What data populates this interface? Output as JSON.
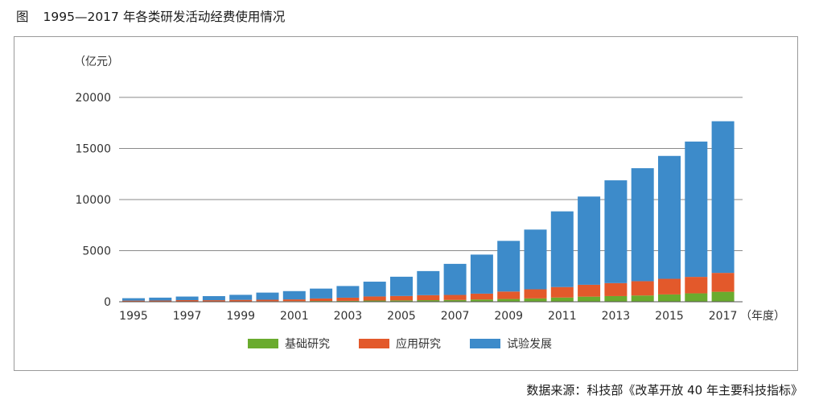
{
  "figure": {
    "label": "图",
    "title": "1995—2017 年各类研发活动经费使用情况"
  },
  "source": "数据来源：科技部《改革开放 40 年主要科技指标》",
  "chart_data": {
    "type": "bar",
    "stacked": true,
    "y_unit_label": "（亿元）",
    "x_unit_label": "（年度）",
    "ylim": [
      0,
      20000
    ],
    "y_ticks": [
      0,
      5000,
      10000,
      15000,
      20000
    ],
    "grid": "horizontal",
    "legend_position": "bottom-center",
    "categories": [
      "1995",
      "1996",
      "1997",
      "1998",
      "1999",
      "2000",
      "2001",
      "2002",
      "2003",
      "2004",
      "2005",
      "2006",
      "2007",
      "2008",
      "2009",
      "2010",
      "2011",
      "2012",
      "2013",
      "2014",
      "2015",
      "2016",
      "2017"
    ],
    "x_tick_labels": [
      "1995",
      "1997",
      "1999",
      "2001",
      "2003",
      "2005",
      "2007",
      "2009",
      "2011",
      "2013",
      "2015",
      "2017"
    ],
    "series": [
      {
        "name": "基础研究",
        "color": "#6aab2e",
        "values": [
          18,
          20,
          27,
          28,
          34,
          46,
          55,
          74,
          87,
          117,
          131,
          155,
          174,
          220,
          270,
          325,
          412,
          499,
          555,
          614,
          716,
          823,
          975
        ]
      },
      {
        "name": "应用研究",
        "color": "#e3592b",
        "values": [
          92,
          97,
          132,
          124,
          151,
          152,
          175,
          246,
          311,
          400,
          434,
          489,
          493,
          575,
          730,
          894,
          1028,
          1162,
          1269,
          1398,
          1529,
          1610,
          1849
        ]
      },
      {
        "name": "试验发展",
        "color": "#3d8bca",
        "values": [
          238,
          287,
          350,
          399,
          493,
          698,
          812,
          968,
          1142,
          1449,
          1885,
          2358,
          3042,
          3820,
          4958,
          5844,
          7406,
          8634,
          10059,
          11056,
          12025,
          13243,
          14840
        ]
      }
    ]
  }
}
